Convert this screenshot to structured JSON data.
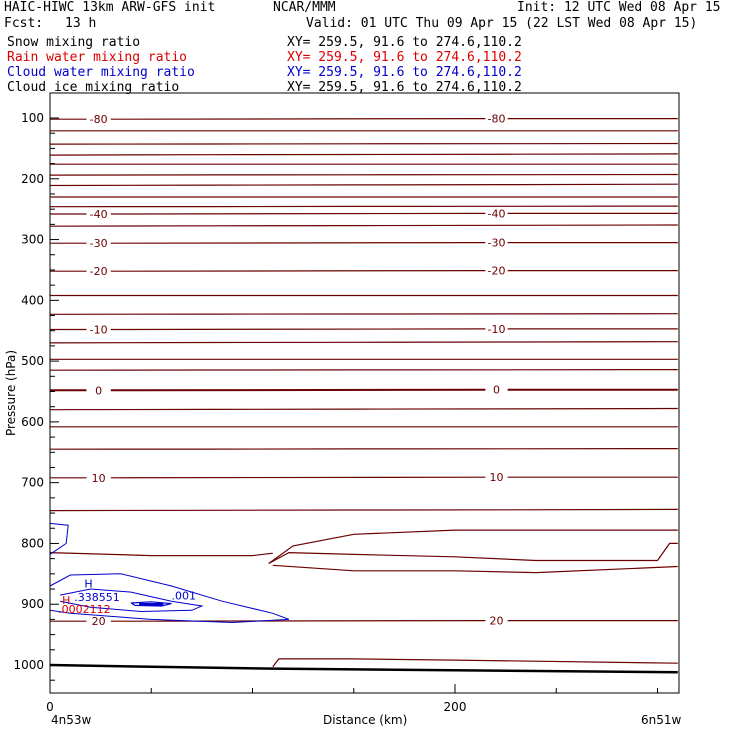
{
  "header": {
    "title": "HAIC-HIWC 13km ARW-GFS init",
    "org": "NCAR/MMM",
    "init": "Init: 12 UTC Wed 08 Apr 15",
    "fcst_label": "Fcst:",
    "fcst_value": "13 h",
    "valid": "Valid: 01 UTC Thu 09 Apr 15 (22 LST Wed 08 Apr 15)"
  },
  "fields": [
    {
      "name": "Snow mixing ratio",
      "xy": "XY= 259.5, 91.6 to 274.6,110.2",
      "color": "#000000"
    },
    {
      "name": "Rain water mixing ratio",
      "xy": "XY= 259.5, 91.6 to 274.6,110.2",
      "color": "#dd0000"
    },
    {
      "name": "Cloud water mixing ratio",
      "xy": "XY= 259.5, 91.6 to 274.6,110.2",
      "color": "#0000cc"
    },
    {
      "name": "Cloud ice mixing ratio",
      "xy": "XY= 259.5, 91.6 to 274.6,110.2",
      "color": "#000000"
    }
  ],
  "chart_data": {
    "type": "contour cross-section",
    "xlabel": "Distance (km)",
    "ylabel": "Pressure (hPa)",
    "xlim": [
      0,
      310
    ],
    "ylim": [
      1045,
      90
    ],
    "x_ticks": [
      0,
      200
    ],
    "y_ticks": [
      100,
      200,
      300,
      400,
      500,
      600,
      700,
      800,
      900,
      1000
    ],
    "x_endpoints": [
      "4n53w",
      "6n51w"
    ],
    "contour_color": "#6b0000",
    "temperature_contours": [
      {
        "label": "-80",
        "p": 102
      },
      {
        "label": "-40",
        "p": 258
      },
      {
        "label": "-30",
        "p": 306
      },
      {
        "label": "-20",
        "p": 352
      },
      {
        "label": "-10",
        "p": 448
      },
      {
        "label": "0",
        "p": 548
      },
      {
        "label": "10",
        "p": 692
      },
      {
        "label": "20",
        "p": 928
      }
    ],
    "unlabeled_lines_p": [
      121,
      143,
      161,
      176,
      194,
      211,
      230,
      246,
      278,
      392,
      423,
      470,
      497,
      515,
      580,
      608,
      645,
      746
    ],
    "cloud_water_annotations": [
      {
        "label": "H",
        "x": 17,
        "p": 866
      },
      {
        "label": ".338551",
        "x": 12,
        "p": 888
      },
      {
        "label": ".001",
        "x": 60,
        "p": 886
      }
    ],
    "rain_water_annotations": [
      {
        "label": "H",
        "x": 6,
        "p": 893
      },
      {
        "label": ".0002112",
        "x": 4,
        "p": 908
      }
    ],
    "rain_color": "#dd0000",
    "cloud_water_color": "#0000cc"
  }
}
